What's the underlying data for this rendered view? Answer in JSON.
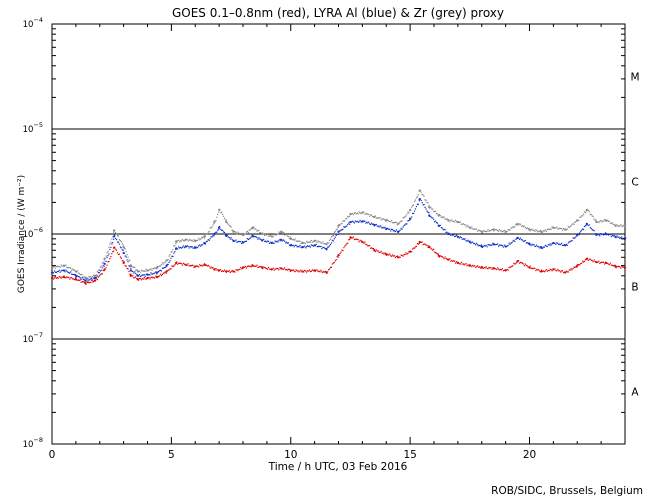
{
  "chart_data": {
    "type": "scatter",
    "title": "GOES 0.1–0.8nm (red), LYRA Al (blue) & Zr (grey) proxy",
    "xlabel": "Time / h UTC, 03 Feb 2016",
    "ylabel": "GOES Irradiance / (W m⁻²)",
    "xlim": [
      0,
      24
    ],
    "ylim_log10": [
      -8,
      -4
    ],
    "x_ticks": [
      0,
      5,
      10,
      15,
      20
    ],
    "y_ticks": [
      {
        "mantissa": "10",
        "exp": "−8",
        "log10": -8
      },
      {
        "mantissa": "10",
        "exp": "−7",
        "log10": -7
      },
      {
        "mantissa": "10",
        "exp": "−6",
        "log10": -6
      },
      {
        "mantissa": "10",
        "exp": "−5",
        "log10": -5
      },
      {
        "mantissa": "10",
        "exp": "−4",
        "log10": -4
      }
    ],
    "reference_lines_log10": [
      -7,
      -6,
      -5
    ],
    "flare_classes": [
      {
        "label": "A",
        "log10": -7.5
      },
      {
        "label": "B",
        "log10": -6.5
      },
      {
        "label": "C",
        "log10": -5.5
      },
      {
        "label": "M",
        "log10": -4.5
      }
    ],
    "series": [
      {
        "name": "Zr proxy",
        "color": "#888888",
        "points": [
          [
            0,
            4.8e-07
          ],
          [
            0.5,
            5e-07
          ],
          [
            1.0,
            4.4e-07
          ],
          [
            1.4,
            3.8e-07
          ],
          [
            1.8,
            4e-07
          ],
          [
            2.2,
            5.8e-07
          ],
          [
            2.6,
            1.08e-06
          ],
          [
            3.0,
            7.5e-07
          ],
          [
            3.3,
            5e-07
          ],
          [
            3.6,
            4.4e-07
          ],
          [
            4.0,
            4.5e-07
          ],
          [
            4.4,
            4.8e-07
          ],
          [
            4.8,
            5.6e-07
          ],
          [
            5.2,
            8.5e-07
          ],
          [
            5.6,
            8.8e-07
          ],
          [
            6.0,
            8.6e-07
          ],
          [
            6.4,
            9.5e-07
          ],
          [
            6.8,
            1.3e-06
          ],
          [
            7.0,
            1.7e-06
          ],
          [
            7.3,
            1.3e-06
          ],
          [
            7.6,
            1.05e-06
          ],
          [
            8.0,
            9.8e-07
          ],
          [
            8.4,
            1.15e-06
          ],
          [
            8.8,
            1e-06
          ],
          [
            9.2,
            9.5e-07
          ],
          [
            9.6,
            1.05e-06
          ],
          [
            10.0,
            9e-07
          ],
          [
            10.5,
            8.2e-07
          ],
          [
            11.0,
            8.6e-07
          ],
          [
            11.5,
            8e-07
          ],
          [
            12.0,
            1.2e-06
          ],
          [
            12.5,
            1.55e-06
          ],
          [
            13.0,
            1.6e-06
          ],
          [
            13.5,
            1.45e-06
          ],
          [
            14.0,
            1.35e-06
          ],
          [
            14.5,
            1.25e-06
          ],
          [
            15.0,
            1.7e-06
          ],
          [
            15.4,
            2.6e-06
          ],
          [
            15.8,
            1.8e-06
          ],
          [
            16.2,
            1.5e-06
          ],
          [
            16.6,
            1.35e-06
          ],
          [
            17.0,
            1.3e-06
          ],
          [
            17.5,
            1.15e-06
          ],
          [
            18.0,
            1.05e-06
          ],
          [
            18.5,
            1.1e-06
          ],
          [
            19.0,
            1.05e-06
          ],
          [
            19.5,
            1.25e-06
          ],
          [
            20.0,
            1.1e-06
          ],
          [
            20.5,
            1.05e-06
          ],
          [
            21.0,
            1.15e-06
          ],
          [
            21.5,
            1.1e-06
          ],
          [
            22.0,
            1.35e-06
          ],
          [
            22.4,
            1.7e-06
          ],
          [
            22.8,
            1.3e-06
          ],
          [
            23.2,
            1.35e-06
          ],
          [
            23.6,
            1.2e-06
          ],
          [
            24.0,
            1.2e-06
          ]
        ]
      },
      {
        "name": "LYRA Al proxy",
        "color": "#1030c8",
        "points": [
          [
            0,
            4.3e-07
          ],
          [
            0.5,
            4.5e-07
          ],
          [
            1.0,
            4e-07
          ],
          [
            1.4,
            3.6e-07
          ],
          [
            1.8,
            3.8e-07
          ],
          [
            2.2,
            5.2e-07
          ],
          [
            2.6,
            9.5e-07
          ],
          [
            3.0,
            6.6e-07
          ],
          [
            3.3,
            4.5e-07
          ],
          [
            3.6,
            4e-07
          ],
          [
            4.0,
            4.1e-07
          ],
          [
            4.4,
            4.3e-07
          ],
          [
            4.8,
            5e-07
          ],
          [
            5.2,
            7.3e-07
          ],
          [
            5.6,
            7.6e-07
          ],
          [
            6.0,
            7.4e-07
          ],
          [
            6.4,
            8.2e-07
          ],
          [
            6.8,
            1e-06
          ],
          [
            7.0,
            1.15e-06
          ],
          [
            7.3,
            9.6e-07
          ],
          [
            7.6,
            8.6e-07
          ],
          [
            8.0,
            8.3e-07
          ],
          [
            8.4,
            9.6e-07
          ],
          [
            8.8,
            8.7e-07
          ],
          [
            9.2,
            8.2e-07
          ],
          [
            9.6,
            8.8e-07
          ],
          [
            10.0,
            7.8e-07
          ],
          [
            10.5,
            7.5e-07
          ],
          [
            11.0,
            7.8e-07
          ],
          [
            11.5,
            7.2e-07
          ],
          [
            12.0,
            1.05e-06
          ],
          [
            12.5,
            1.3e-06
          ],
          [
            13.0,
            1.32e-06
          ],
          [
            13.5,
            1.22e-06
          ],
          [
            14.0,
            1.12e-06
          ],
          [
            14.5,
            1.05e-06
          ],
          [
            15.0,
            1.4e-06
          ],
          [
            15.4,
            2.15e-06
          ],
          [
            15.8,
            1.5e-06
          ],
          [
            16.2,
            1.2e-06
          ],
          [
            16.6,
            1e-06
          ],
          [
            17.0,
            9.4e-07
          ],
          [
            17.5,
            8.4e-07
          ],
          [
            18.0,
            7.6e-07
          ],
          [
            18.5,
            8e-07
          ],
          [
            19.0,
            7.6e-07
          ],
          [
            19.5,
            9.2e-07
          ],
          [
            20.0,
            8e-07
          ],
          [
            20.5,
            7.4e-07
          ],
          [
            21.0,
            8.2e-07
          ],
          [
            21.5,
            7.8e-07
          ],
          [
            22.0,
            9.8e-07
          ],
          [
            22.4,
            1.25e-06
          ],
          [
            22.8,
            9.8e-07
          ],
          [
            23.2,
            1e-06
          ],
          [
            23.6,
            9.4e-07
          ],
          [
            24.0,
            9e-07
          ]
        ]
      },
      {
        "name": "GOES 0.1–0.8nm",
        "color": "#e00000",
        "points": [
          [
            0,
            3.8e-07
          ],
          [
            0.5,
            3.9e-07
          ],
          [
            1.0,
            3.7e-07
          ],
          [
            1.4,
            3.4e-07
          ],
          [
            1.8,
            3.6e-07
          ],
          [
            2.2,
            4.6e-07
          ],
          [
            2.6,
            7.4e-07
          ],
          [
            3.0,
            5.3e-07
          ],
          [
            3.3,
            4e-07
          ],
          [
            3.6,
            3.7e-07
          ],
          [
            4.0,
            3.8e-07
          ],
          [
            4.4,
            3.9e-07
          ],
          [
            4.8,
            4.4e-07
          ],
          [
            5.2,
            5.3e-07
          ],
          [
            5.6,
            5.1e-07
          ],
          [
            6.0,
            4.9e-07
          ],
          [
            6.4,
            5.1e-07
          ],
          [
            6.8,
            4.6e-07
          ],
          [
            7.0,
            4.5e-07
          ],
          [
            7.3,
            4.4e-07
          ],
          [
            7.6,
            4.4e-07
          ],
          [
            8.0,
            4.8e-07
          ],
          [
            8.4,
            5e-07
          ],
          [
            8.8,
            4.8e-07
          ],
          [
            9.2,
            4.6e-07
          ],
          [
            9.6,
            4.7e-07
          ],
          [
            10.0,
            4.5e-07
          ],
          [
            10.5,
            4.4e-07
          ],
          [
            11.0,
            4.5e-07
          ],
          [
            11.5,
            4.3e-07
          ],
          [
            12.0,
            6.3e-07
          ],
          [
            12.5,
            9.3e-07
          ],
          [
            13.0,
            8.4e-07
          ],
          [
            13.5,
            7e-07
          ],
          [
            14.0,
            6.4e-07
          ],
          [
            14.5,
            6e-07
          ],
          [
            15.0,
            6.8e-07
          ],
          [
            15.4,
            8.4e-07
          ],
          [
            15.8,
            7.5e-07
          ],
          [
            16.2,
            6.2e-07
          ],
          [
            16.6,
            5.7e-07
          ],
          [
            17.0,
            5.3e-07
          ],
          [
            17.5,
            5e-07
          ],
          [
            18.0,
            4.8e-07
          ],
          [
            18.5,
            4.7e-07
          ],
          [
            19.0,
            4.5e-07
          ],
          [
            19.5,
            5.5e-07
          ],
          [
            20.0,
            4.8e-07
          ],
          [
            20.5,
            4.4e-07
          ],
          [
            21.0,
            4.6e-07
          ],
          [
            21.5,
            4.3e-07
          ],
          [
            22.0,
            5e-07
          ],
          [
            22.4,
            5.8e-07
          ],
          [
            22.8,
            5.4e-07
          ],
          [
            23.2,
            5.3e-07
          ],
          [
            23.6,
            4.9e-07
          ],
          [
            24.0,
            4.8e-07
          ]
        ]
      }
    ]
  },
  "footer": {
    "credit": "ROB/SIDC, Brussels, Belgium"
  }
}
